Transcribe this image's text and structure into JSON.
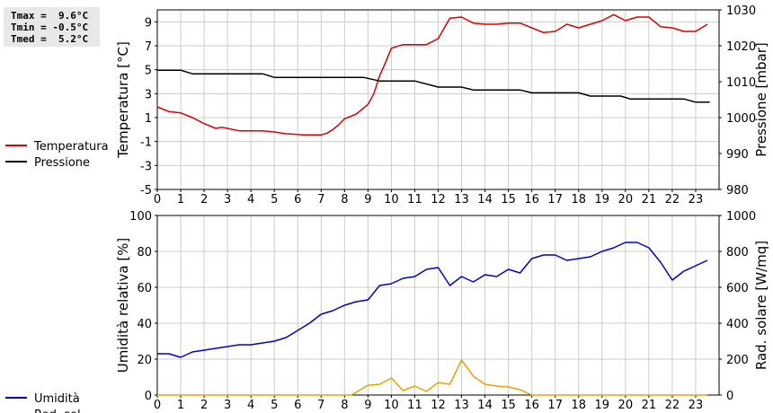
{
  "stats": {
    "tmax": "Tmax =  9.6°C",
    "tmin": "Tmin = -0.5°C",
    "tmed": "Tmed =  5.2°C"
  },
  "chart_data": [
    {
      "type": "line",
      "xlabel": "",
      "ylabel": "Temperatura [°C]",
      "y2label": "Pressione [mbar]",
      "xlim": [
        0,
        24
      ],
      "ylim": [
        -5,
        10
      ],
      "y2lim": [
        980,
        1030
      ],
      "x_ticks": [
        0,
        1,
        2,
        3,
        4,
        5,
        6,
        7,
        8,
        9,
        10,
        11,
        12,
        13,
        14,
        15,
        16,
        17,
        18,
        19,
        20,
        21,
        22,
        23
      ],
      "y_ticks": [
        -5,
        -3,
        -1,
        1,
        3,
        5,
        7,
        9
      ],
      "y2_ticks": [
        980,
        990,
        1000,
        1010,
        1020,
        1030
      ],
      "grid": true,
      "legend_position": "left",
      "series": [
        {
          "name": "Temperatura",
          "axis": "left",
          "color": "#dd0000",
          "x": [
            0,
            0.5,
            1,
            1.5,
            2,
            2.5,
            2.75,
            3,
            3.5,
            4,
            4.5,
            5,
            5.5,
            6,
            6.25,
            6.5,
            7,
            7.25,
            7.5,
            7.75,
            8,
            8.5,
            9,
            9.25,
            9.5,
            9.75,
            10,
            10.5,
            11,
            11.5,
            12,
            12.5,
            13,
            13.5,
            14,
            14.5,
            15,
            15.5,
            16,
            16.5,
            17,
            17.5,
            18,
            18.5,
            19,
            19.5,
            20,
            20.5,
            21,
            21.5,
            22,
            22.5,
            23,
            23.5
          ],
          "y": [
            1.9,
            1.5,
            1.4,
            1.0,
            0.5,
            0.1,
            0.2,
            0.1,
            -0.1,
            -0.1,
            -0.1,
            -0.2,
            -0.35,
            -0.4,
            -0.45,
            -0.45,
            -0.45,
            -0.3,
            0.0,
            0.4,
            0.9,
            1.3,
            2.1,
            3.0,
            4.5,
            5.6,
            6.8,
            7.1,
            7.1,
            7.1,
            7.6,
            9.3,
            9.4,
            8.9,
            8.8,
            8.8,
            8.9,
            8.9,
            8.5,
            8.1,
            8.2,
            8.8,
            8.5,
            8.8,
            9.1,
            9.6,
            9.1,
            9.4,
            9.4,
            8.6,
            8.5,
            8.2,
            8.2,
            8.8
          ]
        },
        {
          "name": "Pressione",
          "axis": "right",
          "color": "#000000",
          "x": [
            0,
            1,
            1.5,
            4.5,
            5,
            8.8,
            9.5,
            11,
            12,
            13,
            13.5,
            15.5,
            16,
            18,
            18.5,
            19.8,
            20.2,
            22.5,
            23,
            23.6
          ],
          "y": [
            1013.2,
            1013.2,
            1012.2,
            1012.2,
            1011.2,
            1011.2,
            1010.2,
            1010.2,
            1008.5,
            1008.5,
            1007.7,
            1007.7,
            1006.9,
            1006.9,
            1006.0,
            1006.0,
            1005.2,
            1005.2,
            1004.3,
            1004.3
          ]
        }
      ]
    },
    {
      "type": "line",
      "xlabel": "",
      "ylabel": "Umidità relativa [%]",
      "y2label": "Rad. solare [W/mq]",
      "xlim": [
        0,
        24
      ],
      "ylim": [
        0,
        100
      ],
      "y2lim": [
        0,
        1000
      ],
      "x_ticks": [
        0,
        1,
        2,
        3,
        4,
        5,
        6,
        7,
        8,
        9,
        10,
        11,
        12,
        13,
        14,
        15,
        16,
        17,
        18,
        19,
        20,
        21,
        22,
        23
      ],
      "y_ticks": [
        0,
        20,
        40,
        60,
        80,
        100
      ],
      "y2_ticks": [
        0,
        200,
        400,
        600,
        800,
        1000
      ],
      "grid": true,
      "legend_position": "left",
      "series": [
        {
          "name": "Umidità",
          "axis": "left",
          "color": "#0000cc",
          "x": [
            0,
            0.5,
            1,
            1.5,
            2,
            2.5,
            3,
            3.5,
            4,
            4.5,
            5,
            5.5,
            6,
            6.5,
            7,
            7.5,
            8,
            8.5,
            9,
            9.5,
            10,
            10.5,
            11,
            11.5,
            12,
            12.5,
            13,
            13.5,
            14,
            14.5,
            15,
            15.5,
            16,
            16.5,
            17,
            17.5,
            18,
            18.5,
            19,
            19.5,
            20,
            20.5,
            21,
            21.5,
            22,
            22.5,
            23,
            23.5
          ],
          "y": [
            23,
            23,
            21,
            24,
            25,
            26,
            27,
            28,
            28,
            29,
            30,
            32,
            36,
            40,
            45,
            47,
            50,
            52,
            53,
            61,
            62,
            65,
            66,
            70,
            71,
            61,
            66,
            63,
            67,
            66,
            70,
            68,
            76,
            78,
            78,
            75,
            76,
            77,
            80,
            82,
            85,
            85,
            82,
            74,
            64,
            69,
            72,
            75
          ]
        },
        {
          "name": "Rad. sol.",
          "axis": "right",
          "color": "#f0a000",
          "x": [
            0,
            1,
            2,
            3,
            4,
            5,
            6,
            7,
            8,
            8.3,
            9,
            9.5,
            10,
            10.5,
            11,
            11.5,
            12,
            12.5,
            13,
            13.5,
            14,
            14.5,
            15,
            15.5,
            16,
            17,
            18,
            19,
            20,
            21,
            22,
            23,
            23.5
          ],
          "y": [
            0,
            0,
            0,
            0,
            0,
            0,
            0,
            0,
            0,
            0,
            55,
            60,
            95,
            25,
            50,
            20,
            70,
            60,
            195,
            105,
            60,
            50,
            45,
            30,
            0,
            0,
            0,
            0,
            0,
            0,
            0,
            0,
            0
          ]
        }
      ]
    }
  ]
}
